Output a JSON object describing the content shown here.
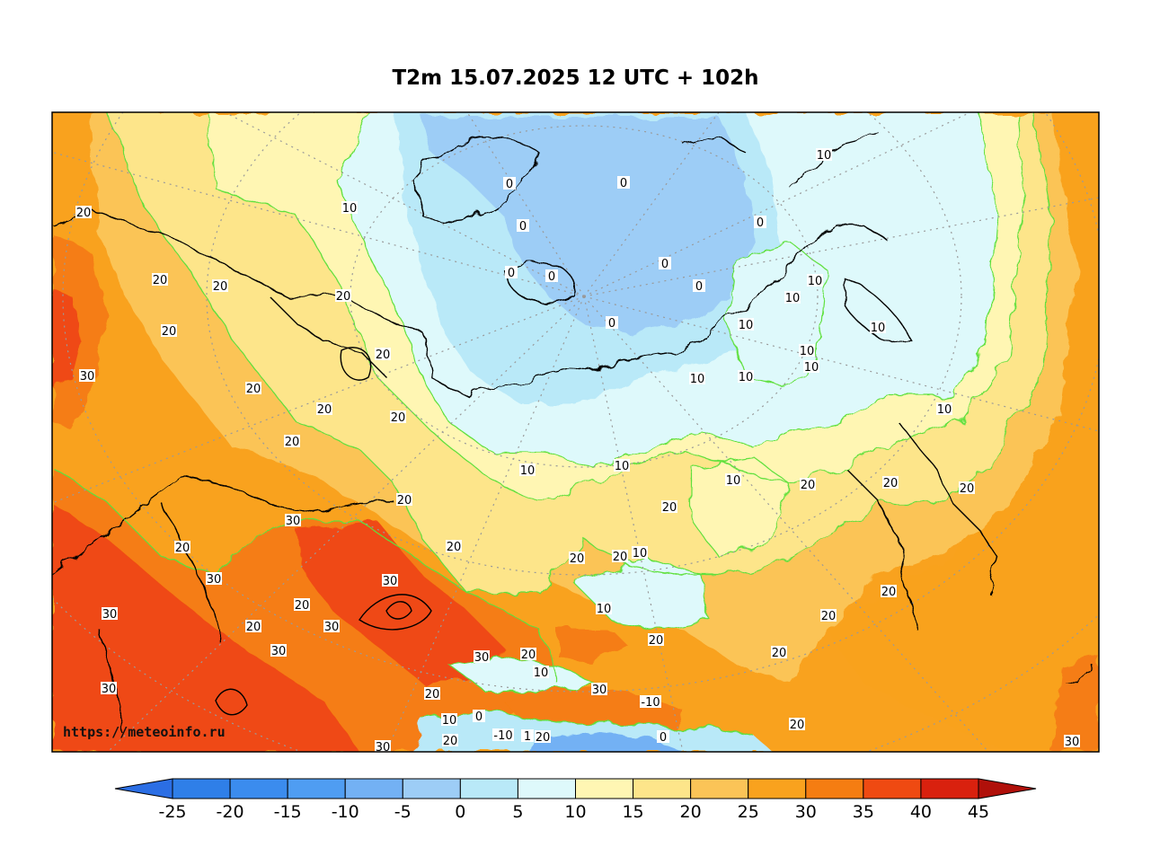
{
  "title": "T2m 15.07.2025 12 UTC + 102h",
  "watermark": "https://meteoinfo.ru",
  "colorbar": {
    "ticks": [
      "-25",
      "-20",
      "-15",
      "-10",
      "-5",
      "0",
      "5",
      "10",
      "15",
      "20",
      "25",
      "30",
      "35",
      "40",
      "45"
    ],
    "colors": [
      "#2f7fe8",
      "#3b8cee",
      "#4f9df2",
      "#73b1f4",
      "#9dcdf6",
      "#b9e9f8",
      "#def9fb",
      "#fff6b3",
      "#fde58a",
      "#fbc457",
      "#f9a21e",
      "#f57d12",
      "#ef4a12",
      "#d9210e"
    ],
    "under_color": "#2b6ee4",
    "over_color": "#b0100a"
  },
  "contour_labels": [
    "30",
    "20",
    "10",
    "0",
    "-10",
    "1"
  ],
  "colors": {
    "frame": "#000000",
    "contour_line": "#5fe03c",
    "coastline": "#000000",
    "graticule": "#9a9a9a"
  }
}
